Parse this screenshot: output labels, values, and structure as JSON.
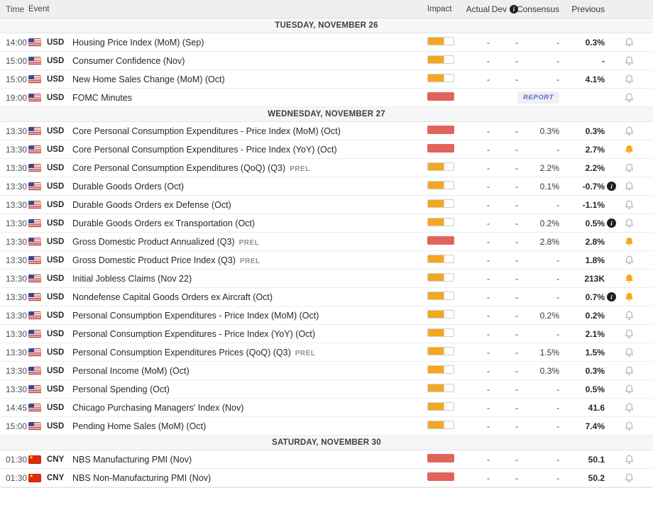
{
  "colors": {
    "impact_medium": "#f5a623",
    "impact_high": "#e2635c",
    "alert_bell": "#f6a821",
    "bell_outline": "#a9aeb6",
    "report_text": "#5a6acf",
    "day_header_bg": "#f6f6f6",
    "header_bg": "#efefef"
  },
  "header": {
    "time": "Time",
    "event": "Event",
    "impact": "Impact",
    "actual": "Actual",
    "dev": "Dev",
    "consensus": "Consensus",
    "previous": "Previous"
  },
  "sections": [
    {
      "title": "TUESDAY, NOVEMBER 26",
      "rows": [
        {
          "time": "14:00",
          "flag": "us",
          "currency": "USD",
          "event": "Housing Price Index (MoM) (Sep)",
          "impact": "medium",
          "actual": "-",
          "dev": "-",
          "consensus": "-",
          "previous": "0.3%"
        },
        {
          "time": "15:00",
          "flag": "us",
          "currency": "USD",
          "event": "Consumer Confidence (Nov)",
          "impact": "medium",
          "actual": "-",
          "dev": "-",
          "consensus": "-",
          "previous": "-"
        },
        {
          "time": "15:00",
          "flag": "us",
          "currency": "USD",
          "event": "New Home Sales Change (MoM) (Oct)",
          "impact": "medium",
          "actual": "-",
          "dev": "-",
          "consensus": "-",
          "previous": "4.1%"
        },
        {
          "time": "19:00",
          "flag": "us",
          "currency": "USD",
          "event": "FOMC Minutes",
          "impact": "high",
          "actual": "",
          "dev": "",
          "consensus": "",
          "previous": "",
          "report": "REPORT"
        }
      ]
    },
    {
      "title": "WEDNESDAY, NOVEMBER 27",
      "rows": [
        {
          "time": "13:30",
          "flag": "us",
          "currency": "USD",
          "event": "Core Personal Consumption Expenditures - Price Index (MoM) (Oct)",
          "impact": "high",
          "actual": "-",
          "dev": "-",
          "consensus": "0.3%",
          "previous": "0.3%"
        },
        {
          "time": "13:30",
          "flag": "us",
          "currency": "USD",
          "event": "Core Personal Consumption Expenditures - Price Index (YoY) (Oct)",
          "impact": "high",
          "actual": "-",
          "dev": "-",
          "consensus": "-",
          "previous": "2.7%",
          "alert": true
        },
        {
          "time": "13:30",
          "flag": "us",
          "currency": "USD",
          "event": "Core Personal Consumption Expenditures (QoQ) (Q3)",
          "tag": "PREL",
          "impact": "medium",
          "actual": "-",
          "dev": "-",
          "consensus": "2.2%",
          "previous": "2.2%"
        },
        {
          "time": "13:30",
          "flag": "us",
          "currency": "USD",
          "event": "Durable Goods Orders (Oct)",
          "impact": "medium",
          "actual": "-",
          "dev": "-",
          "consensus": "0.1%",
          "previous": "-0.7%",
          "info": true
        },
        {
          "time": "13:30",
          "flag": "us",
          "currency": "USD",
          "event": "Durable Goods Orders ex Defense (Oct)",
          "impact": "medium",
          "actual": "-",
          "dev": "-",
          "consensus": "-",
          "previous": "-1.1%"
        },
        {
          "time": "13:30",
          "flag": "us",
          "currency": "USD",
          "event": "Durable Goods Orders ex Transportation (Oct)",
          "impact": "medium",
          "actual": "-",
          "dev": "-",
          "consensus": "0.2%",
          "previous": "0.5%",
          "info": true
        },
        {
          "time": "13:30",
          "flag": "us",
          "currency": "USD",
          "event": "Gross Domestic Product Annualized (Q3)",
          "tag": "PREL",
          "impact": "high",
          "actual": "-",
          "dev": "-",
          "consensus": "2.8%",
          "previous": "2.8%",
          "alert": true
        },
        {
          "time": "13:30",
          "flag": "us",
          "currency": "USD",
          "event": "Gross Domestic Product Price Index (Q3)",
          "tag": "PREL",
          "impact": "medium",
          "actual": "-",
          "dev": "-",
          "consensus": "-",
          "previous": "1.8%"
        },
        {
          "time": "13:30",
          "flag": "us",
          "currency": "USD",
          "event": "Initial Jobless Claims (Nov 22)",
          "impact": "medium",
          "actual": "-",
          "dev": "-",
          "consensus": "-",
          "previous": "213K",
          "alert": true
        },
        {
          "time": "13:30",
          "flag": "us",
          "currency": "USD",
          "event": "Nondefense Capital Goods Orders ex Aircraft (Oct)",
          "impact": "medium",
          "actual": "-",
          "dev": "-",
          "consensus": "-",
          "previous": "0.7%",
          "info": true,
          "alert": true
        },
        {
          "time": "13:30",
          "flag": "us",
          "currency": "USD",
          "event": "Personal Consumption Expenditures - Price Index (MoM) (Oct)",
          "impact": "medium",
          "actual": "-",
          "dev": "-",
          "consensus": "0.2%",
          "previous": "0.2%"
        },
        {
          "time": "13:30",
          "flag": "us",
          "currency": "USD",
          "event": "Personal Consumption Expenditures - Price Index (YoY) (Oct)",
          "impact": "medium",
          "actual": "-",
          "dev": "-",
          "consensus": "-",
          "previous": "2.1%"
        },
        {
          "time": "13:30",
          "flag": "us",
          "currency": "USD",
          "event": "Personal Consumption Expenditures Prices (QoQ) (Q3)",
          "tag": "PREL",
          "impact": "medium",
          "actual": "-",
          "dev": "-",
          "consensus": "1.5%",
          "previous": "1.5%"
        },
        {
          "time": "13:30",
          "flag": "us",
          "currency": "USD",
          "event": "Personal Income (MoM) (Oct)",
          "impact": "medium",
          "actual": "-",
          "dev": "-",
          "consensus": "0.3%",
          "previous": "0.3%"
        },
        {
          "time": "13:30",
          "flag": "us",
          "currency": "USD",
          "event": "Personal Spending (Oct)",
          "impact": "medium",
          "actual": "-",
          "dev": "-",
          "consensus": "-",
          "previous": "0.5%"
        },
        {
          "time": "14:45",
          "flag": "us",
          "currency": "USD",
          "event": "Chicago Purchasing Managers' Index (Nov)",
          "impact": "medium",
          "actual": "-",
          "dev": "-",
          "consensus": "-",
          "previous": "41.6"
        },
        {
          "time": "15:00",
          "flag": "us",
          "currency": "USD",
          "event": "Pending Home Sales (MoM) (Oct)",
          "impact": "medium",
          "actual": "-",
          "dev": "-",
          "consensus": "-",
          "previous": "7.4%"
        }
      ]
    },
    {
      "title": "SATURDAY, NOVEMBER 30",
      "rows": [
        {
          "time": "01:30",
          "flag": "cn",
          "currency": "CNY",
          "event": "NBS Manufacturing PMI (Nov)",
          "impact": "high",
          "actual": "-",
          "dev": "-",
          "consensus": "-",
          "previous": "50.1"
        },
        {
          "time": "01:30",
          "flag": "cn",
          "currency": "CNY",
          "event": "NBS Non-Manufacturing PMI (Nov)",
          "impact": "high",
          "actual": "-",
          "dev": "-",
          "consensus": "-",
          "previous": "50.2"
        }
      ]
    }
  ]
}
